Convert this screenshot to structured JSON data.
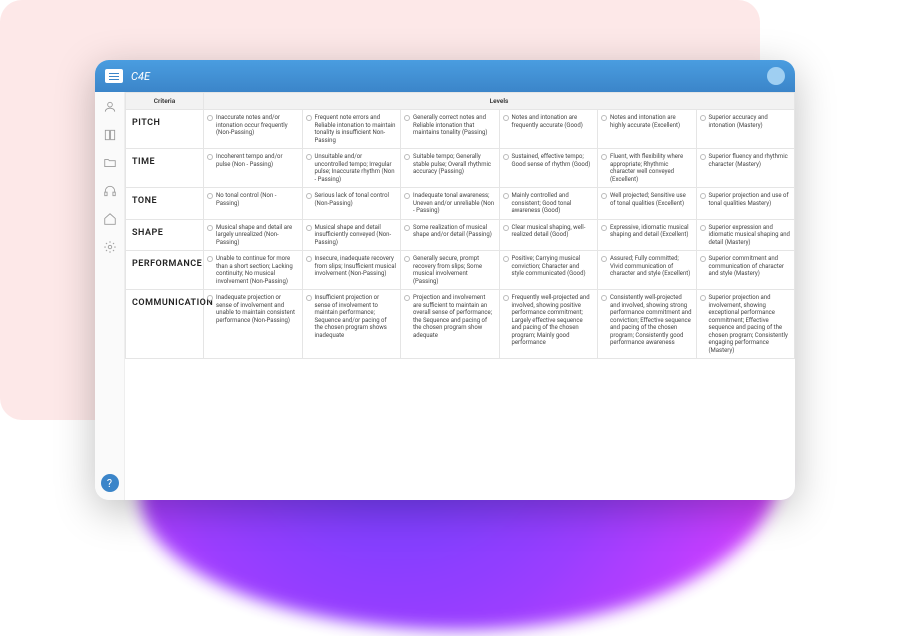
{
  "brand": "C4E",
  "headers": {
    "criteria": "Criteria",
    "levels": "Levels"
  },
  "sidebar_icons": [
    "user",
    "book",
    "folder",
    "headphones",
    "home",
    "gear"
  ],
  "rubric": [
    {
      "criterion": "PITCH",
      "levels": [
        "Inaccurate notes and/or intonation occur frequently (Non-Passing)",
        "Frequent note errors and Reliable intonation to maintain tonality is insufficient Non-Passing",
        "Generally correct notes and Reliable intonation that maintains tonality (Passing)",
        "Notes and intonation are frequently accurate (Good)",
        "Notes and intonation are highly accurate (Excellent)",
        "Superior accuracy and intonation (Mastery)"
      ]
    },
    {
      "criterion": "TIME",
      "levels": [
        "Incoherent tempo and/or pulse (Non - Passing)",
        "Unsuitable and/or uncontrolled tempo; Irregular pulse; Inaccurate rhythm (Non - Passing)",
        "Suitable tempo; Generally stable pulse; Overall rhythmic accuracy (Passing)",
        "Sustained, effective tempo; Good sense of rhythm (Good)",
        "Fluent, with flexibility where appropriate; Rhythmic character well conveyed (Excellent)",
        "Superior fluency and rhythmic character (Mastery)"
      ]
    },
    {
      "criterion": "TONE",
      "levels": [
        "No tonal control (Non - Passing)",
        "Serious lack of tonal control (Non-Passing)",
        "Inadequate tonal awareness; Uneven and/or unreliable (Non - Passing)",
        "Mainly controlled and consistent; Good tonal awareness (Good)",
        "Well projected; Sensitive use of tonal qualities (Excellent)",
        "Superior projection and use of tonal qualities Mastery)"
      ]
    },
    {
      "criterion": "SHAPE",
      "levels": [
        "Musical shape and detail are largely unrealized (Non-Passing)",
        "Musical shape and detail insufficiently conveyed (Non-Passing)",
        "Some realization of musical shape and/or detail (Passing)",
        "Clear musical shaping, well-realized detail (Good)",
        "Expressive, idiomatic musical shaping and detail (Excellent)",
        "Superior expression and idiomatic musical shaping and detail (Mastery)"
      ]
    },
    {
      "criterion": "PERFORMANCE",
      "levels": [
        "Unable to continue for more than a short section; Lacking continuity; No musical involvement (Non-Passing)",
        "Insecure, inadequate recovery from slips; Insufficient musical involvement (Non-Passing)",
        "Generally secure, prompt recovery from slips; Some musical involvement (Passing)",
        "Positive; Carrying musical conviction; Character and style communicated (Good)",
        "Assured; Fully committed; Vivid communication of character and style (Excellent)",
        "Superior commitment and communication of character and style (Mastery)"
      ]
    },
    {
      "criterion": "COMMUNICATION",
      "levels": [
        "Inadequate projection or sense of involvement and unable to maintain consistent performance (Non-Passing)",
        "Insufficient projection or sense of involvement to maintain performance; Sequence and/or pacing of the chosen program shows inadequate",
        "Projection and involvement are sufficient to maintain an overall sense of performance; the Sequence and pacing of the chosen program show adequate",
        "Frequently well-projected and involved, showing positive performance commitment; Largely effective sequence and pacing of the chosen program; Mainly good performance",
        "Consistently well-projected and involved, showing strong performance commitment and conviction; Effective sequence and pacing of the chosen program; Consistently good performance awareness",
        "Superior projection and involvement, showing exceptional performance commitment; Effective sequence and pacing of the chosen program; Consistently engaging performance (Mastery)"
      ]
    }
  ]
}
